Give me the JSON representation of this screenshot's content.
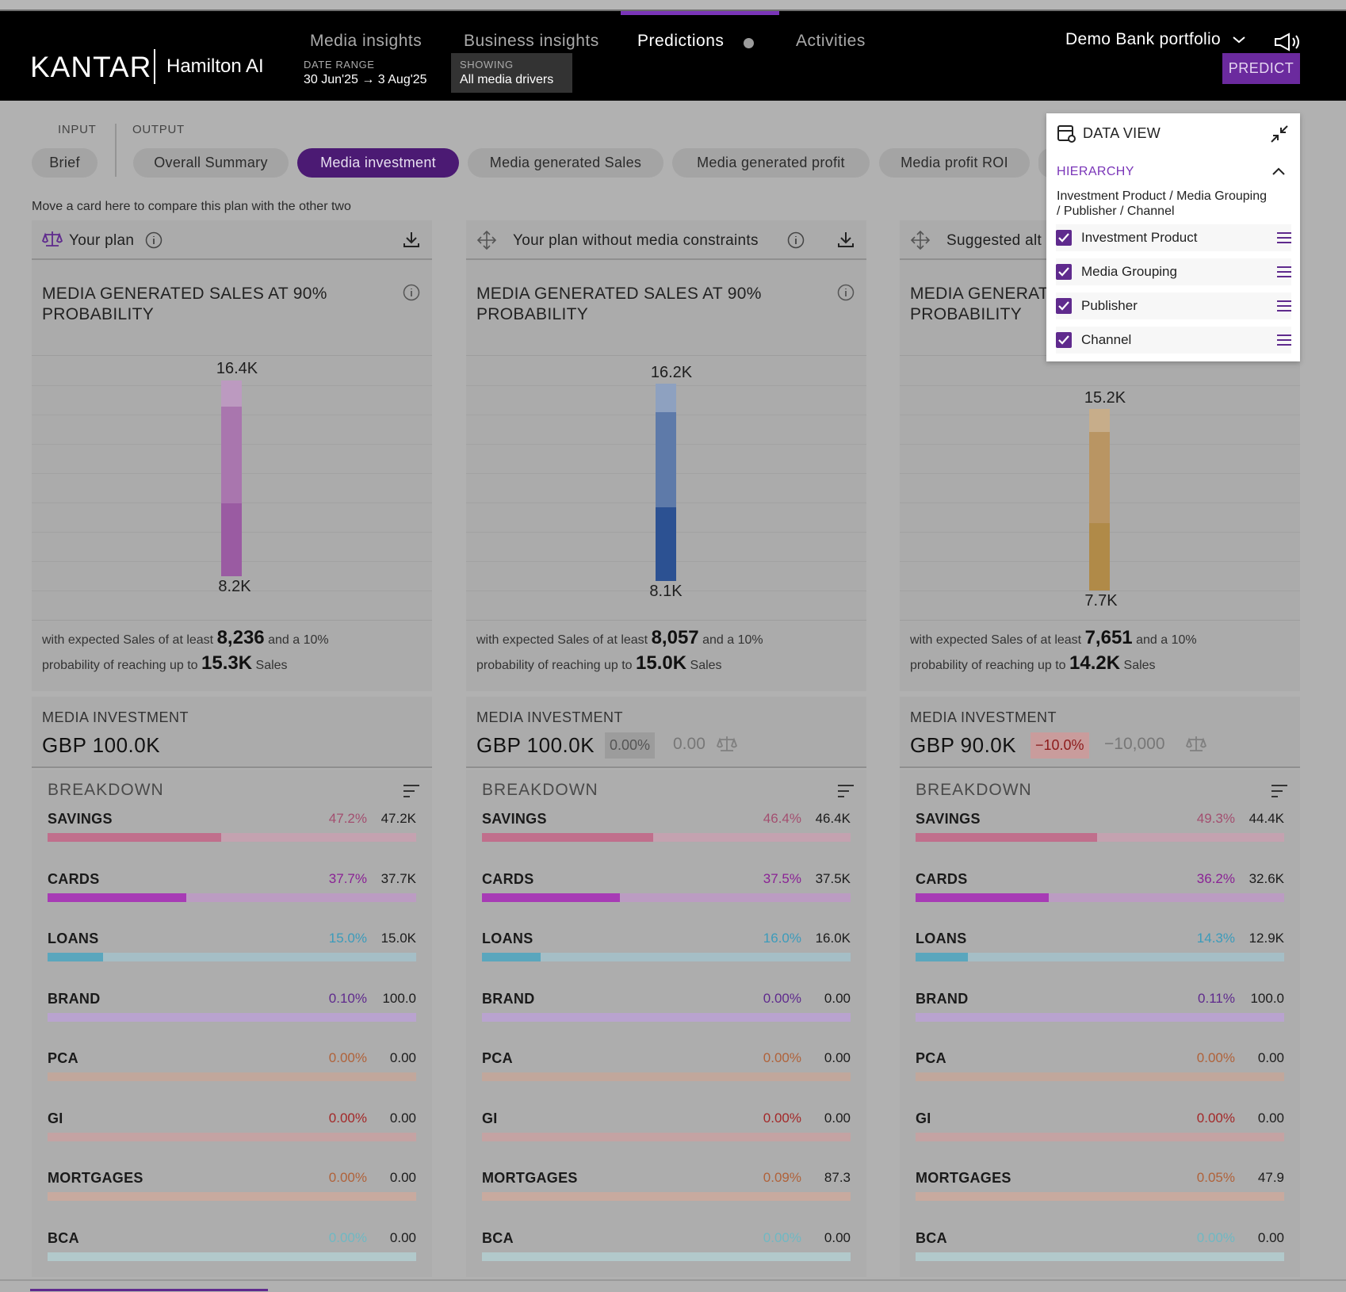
{
  "header": {
    "logo": "KANTAR",
    "product": "Hamilton AI",
    "nav": [
      "Media insights",
      "Business insights",
      "Predictions",
      "Activities"
    ],
    "date_range_label": "DATE RANGE",
    "date_range_value": "30 Jun'25 → 3 Aug'25",
    "showing_label": "SHOWING",
    "showing_value": "All media drivers",
    "portfolio": "Demo Bank portfolio",
    "predict": "PREDICT"
  },
  "sections": {
    "input": "INPUT",
    "output": "OUTPUT"
  },
  "tabs": [
    "Brief",
    "Overall Summary",
    "Media investment",
    "Media generated Sales",
    "Media generated profit",
    "Media profit ROI"
  ],
  "move_hint": "Move a card here to compare this plan with the other two",
  "cards": [
    {
      "title": "Your plan",
      "metric": "MEDIA GENERATED SALES AT 90% PROBABILITY",
      "top": "16.4K",
      "bottom": "8.2K",
      "expect_pre": "with expected Sales of at least",
      "expect_val": "8,236",
      "expect_mid": "and a 10%",
      "expect_pre2": "probability of reaching up to",
      "expect_val2": "15.3K",
      "expect_post": "Sales",
      "inv_label": "MEDIA INVESTMENT",
      "inv_value": "GBP 100.0K",
      "breakdown": "BREAKDOWN",
      "rows": [
        {
          "name": "SAVINGS",
          "pct": "47.2%",
          "val": "47.2K"
        },
        {
          "name": "CARDS",
          "pct": "37.7%",
          "val": "37.7K"
        },
        {
          "name": "LOANS",
          "pct": "15.0%",
          "val": "15.0K"
        },
        {
          "name": "BRAND",
          "pct": "0.10%",
          "val": "100.0"
        },
        {
          "name": "PCA",
          "pct": "0.00%",
          "val": "0.00"
        },
        {
          "name": "GI",
          "pct": "0.00%",
          "val": "0.00"
        },
        {
          "name": "MORTGAGES",
          "pct": "0.00%",
          "val": "0.00"
        },
        {
          "name": "BCA",
          "pct": "0.00%",
          "val": "0.00"
        }
      ]
    },
    {
      "title": "Your plan without media constraints",
      "metric": "MEDIA GENERATED SALES AT 90% PROBABILITY",
      "top": "16.2K",
      "bottom": "8.1K",
      "expect_pre": "with expected Sales of at least",
      "expect_val": "8,057",
      "expect_mid": "and a 10%",
      "expect_pre2": "probability of reaching up to",
      "expect_val2": "15.0K",
      "expect_post": "Sales",
      "inv_label": "MEDIA INVESTMENT",
      "inv_value": "GBP 100.0K",
      "inv_badge": "0.00%",
      "inv_diff": "0.00",
      "breakdown": "BREAKDOWN",
      "rows": [
        {
          "name": "SAVINGS",
          "pct": "46.4%",
          "val": "46.4K"
        },
        {
          "name": "CARDS",
          "pct": "37.5%",
          "val": "37.5K"
        },
        {
          "name": "LOANS",
          "pct": "16.0%",
          "val": "16.0K"
        },
        {
          "name": "BRAND",
          "pct": "0.00%",
          "val": "0.00"
        },
        {
          "name": "PCA",
          "pct": "0.00%",
          "val": "0.00"
        },
        {
          "name": "GI",
          "pct": "0.00%",
          "val": "0.00"
        },
        {
          "name": "MORTGAGES",
          "pct": "0.09%",
          "val": "87.3"
        },
        {
          "name": "BCA",
          "pct": "0.00%",
          "val": "0.00"
        }
      ]
    },
    {
      "title": "Suggested alt",
      "metric": "MEDIA GENERATI PROBABILITY",
      "metric_line1": "MEDIA GENERATI",
      "metric_line2": "PROBABILITY",
      "top": "15.2K",
      "bottom": "7.7K",
      "expect_pre": "with expected Sales of at least",
      "expect_val": "7,651",
      "expect_mid": "and a 10%",
      "expect_pre2": "probability of reaching up to",
      "expect_val2": "14.2K",
      "expect_post": "Sales",
      "inv_label": "MEDIA INVESTMENT",
      "inv_value": "GBP 90.0K",
      "inv_badge": "−10.0%",
      "inv_diff": "−10,000",
      "breakdown": "BREAKDOWN",
      "rows": [
        {
          "name": "SAVINGS",
          "pct": "49.3%",
          "val": "44.4K"
        },
        {
          "name": "CARDS",
          "pct": "36.2%",
          "val": "32.6K"
        },
        {
          "name": "LOANS",
          "pct": "14.3%",
          "val": "12.9K"
        },
        {
          "name": "BRAND",
          "pct": "0.11%",
          "val": "100.0"
        },
        {
          "name": "PCA",
          "pct": "0.00%",
          "val": "0.00"
        },
        {
          "name": "GI",
          "pct": "0.00%",
          "val": "0.00"
        },
        {
          "name": "MORTGAGES",
          "pct": "0.05%",
          "val": "47.9"
        },
        {
          "name": "BCA",
          "pct": "0.00%",
          "val": "0.00"
        }
      ]
    }
  ],
  "data_view": {
    "title": "DATA VIEW",
    "hierarchy_label": "HIERARCHY",
    "path_line1": "Investment Product / Media Grouping",
    "path_line2": " / Publisher / Channel",
    "levels": [
      "Investment Product",
      "Media Grouping",
      "Publisher",
      "Channel"
    ]
  },
  "colors": {
    "accent": "#5f2a8d",
    "savings": "#c06f8c",
    "cards": "#a73bb5",
    "loans": "#5aa6bd",
    "brand": "#b9a3cf",
    "pca": "#c1a79c",
    "gi": "#c4a3a3",
    "mortgages": "#c8aa9f",
    "bca": "#b2c9cb"
  }
}
